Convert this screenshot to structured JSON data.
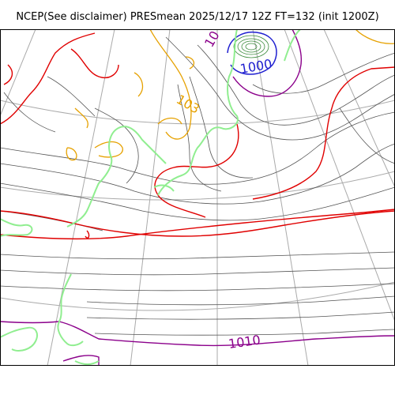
{
  "title": "NCEP(See disclaimer) PRESmean 2025/12/17 12Z FT=132 (init 1200Z)",
  "contour_labels": [
    {
      "id": "label-1000",
      "text": "1000",
      "color": "#1f1fd0"
    },
    {
      "id": "label-1010",
      "text": "1010",
      "color": "#8b008b"
    },
    {
      "id": "label-103",
      "text": "103",
      "color": "#e6a100"
    },
    {
      "id": "label-10",
      "text": "10",
      "color": "#8b008b"
    }
  ],
  "colors": {
    "thin_isobar": "#555555",
    "isobar_1010": "#8b008b",
    "isobar_1020": "#e00000",
    "isobar_1030": "#e6a100",
    "isobar_1000": "#1f1fd0",
    "coastline": "#90ee90",
    "graticule": "#aaaaaa"
  }
}
